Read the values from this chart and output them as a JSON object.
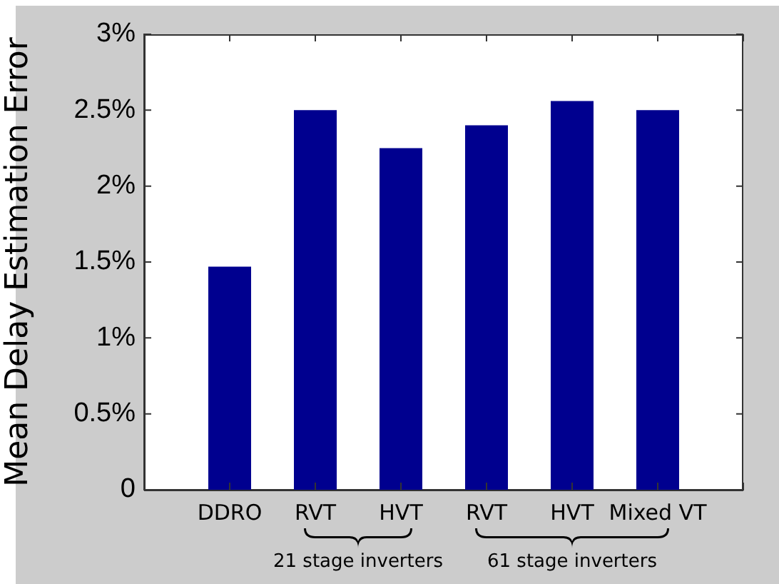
{
  "chart_data": {
    "type": "bar",
    "ylabel": "Mean Delay Estimation Error",
    "categories": [
      "DDRO",
      "RVT",
      "HVT",
      "RVT",
      "HVT",
      "Mixed VT"
    ],
    "values": [
      1.47,
      2.5,
      2.25,
      2.4,
      2.56,
      2.5
    ],
    "color": "#00008f",
    "ylim": [
      0,
      3
    ],
    "yticks": [
      0,
      {
        "value": 0.5,
        "label": "0.5%"
      },
      {
        "value": 1,
        "label": "1%"
      },
      {
        "value": 1.5,
        "label": "1.5%"
      },
      {
        "value": 2,
        "label": "2%"
      },
      {
        "value": 2.5,
        "label": "2.5%"
      },
      {
        "value": 3,
        "label": "3%"
      }
    ],
    "grid": false,
    "legend": false,
    "annotations": [
      "21 stage inverters",
      "61 stage inverters"
    ]
  }
}
